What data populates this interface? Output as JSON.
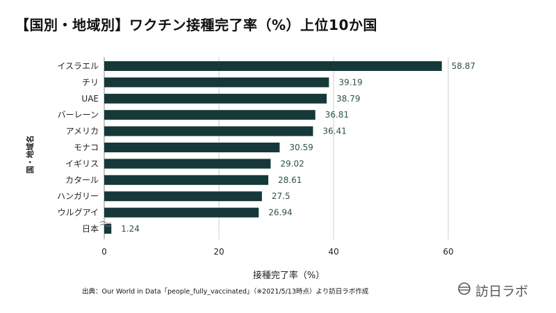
{
  "title": "【国別・地域別】ワクチン接種完了率（%）上位10か国",
  "source_note": "出典：Our World in Data「people_fully_vaccinated」（※2021/5/13時点）より訪日ラボ作成",
  "brand": {
    "name": "訪日ラボ",
    "icon": "globe-icon"
  },
  "colors": {
    "bar": "#163838",
    "grid": "#cccccc",
    "label": "#2f4f4f",
    "text": "#222222"
  },
  "chart_data": {
    "type": "bar",
    "orientation": "horizontal",
    "categories": [
      "イスラエル",
      "チリ",
      "UAE",
      "バーレーン",
      "アメリカ",
      "モナコ",
      "イギリス",
      "カタール",
      "ハンガリー",
      "ウルグアイ",
      "日本"
    ],
    "values": [
      58.87,
      39.19,
      38.79,
      36.81,
      36.41,
      30.59,
      29.02,
      28.61,
      27.5,
      26.94,
      1.24
    ],
    "value_labels": [
      "58.87",
      "39.19",
      "38.79",
      "36.81",
      "36.41",
      "30.59",
      "29.02",
      "28.61",
      "27.5",
      "26.94",
      "1.24"
    ],
    "xlabel": "接種完了率（%）",
    "ylabel": "国・地域名",
    "xlim": [
      0,
      60
    ],
    "xticks": [
      0,
      20,
      40,
      60
    ],
    "xtick_labels": [
      "0",
      "20",
      "40",
      "60"
    ],
    "grid": true,
    "axis_break_on": "日本"
  }
}
